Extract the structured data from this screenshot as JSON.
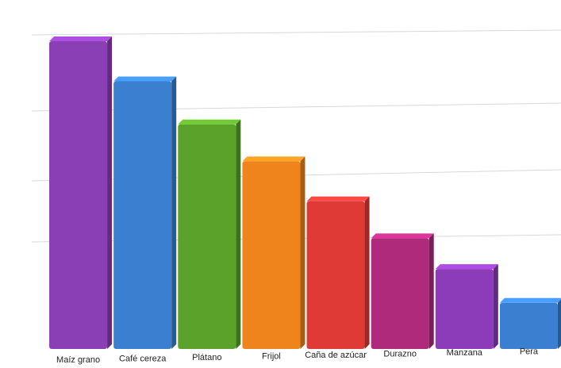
{
  "chart_data": {
    "type": "bar",
    "categories": [
      "Maíz grano",
      "Café cereza",
      "Plátano",
      "Frijol",
      "Caña de azúcar",
      "Durazno",
      "Manzana",
      "Pera"
    ],
    "values": [
      100,
      87,
      73,
      61,
      48,
      36,
      26,
      15
    ],
    "colors": [
      "#8a3fb4",
      "#3a7fd0",
      "#5aa22a",
      "#f0841c",
      "#e03a36",
      "#b02a7c",
      "#8c3cb8",
      "#3a7fd0"
    ],
    "ylim": [
      0,
      100
    ]
  }
}
